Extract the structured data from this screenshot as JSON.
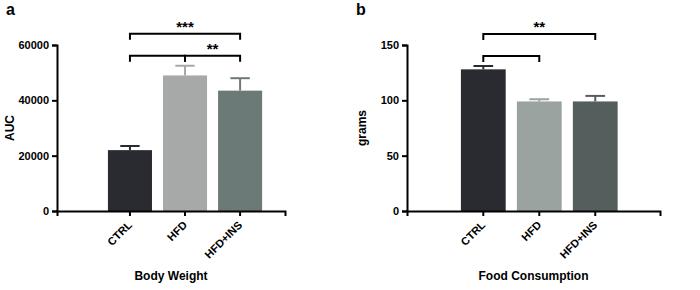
{
  "chart_data": [
    {
      "type": "bar",
      "title": "a",
      "x_label": "Body Weight",
      "y_label": "AUC",
      "categories": [
        "CTRL",
        "HFD",
        "HFD+INS"
      ],
      "values": [
        22000,
        49000,
        43500
      ],
      "errors": [
        1500,
        3500,
        4500
      ],
      "colors": [
        "#2a2b31",
        "#a7a9a9",
        "#6c7a77"
      ],
      "ylim": [
        0,
        60000
      ],
      "yticks": [
        0,
        20000,
        40000,
        60000
      ],
      "annotations": [
        {
          "from": 0,
          "to": 2,
          "label": "***"
        },
        {
          "from": 0,
          "to": 1
        },
        {
          "from": 1,
          "to": 2,
          "label": "**"
        }
      ]
    },
    {
      "type": "bar",
      "title": "b",
      "x_label": "Food Consumption",
      "y_label": "grams",
      "categories": [
        "CTRL",
        "HFD",
        "HFD+INS"
      ],
      "values": [
        128,
        99,
        99
      ],
      "errors": [
        3,
        2,
        5
      ],
      "colors": [
        "#2a2b31",
        "#9aa3a0",
        "#545f5d"
      ],
      "ylim": [
        0,
        150
      ],
      "yticks": [
        0,
        50,
        100,
        150
      ],
      "annotations": [
        {
          "from": 0,
          "to": 1
        },
        {
          "from": 0,
          "to": 2,
          "label": "**"
        }
      ]
    }
  ]
}
